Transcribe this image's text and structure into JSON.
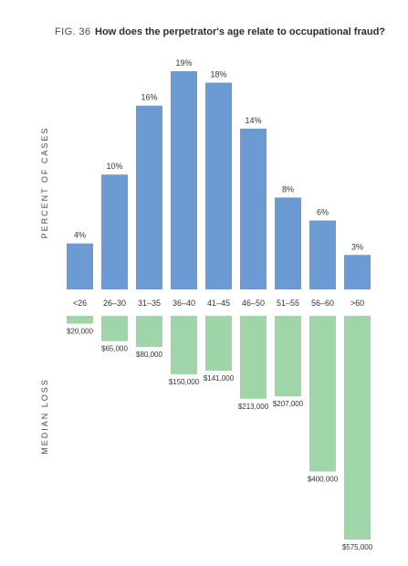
{
  "figure": {
    "label": "FIG. 36",
    "title": "How does the perpetrator's age relate to occupational fraud?"
  },
  "chart_data": [
    {
      "type": "bar",
      "ylabel": "PERCENT OF CASES",
      "categories": [
        "<26",
        "26–30",
        "31–35",
        "36–40",
        "41–45",
        "46–50",
        "51–55",
        "56–60",
        ">60"
      ],
      "values": [
        4,
        10,
        16,
        19,
        18,
        14,
        8,
        6,
        3
      ],
      "value_labels": [
        "4%",
        "10%",
        "16%",
        "19%",
        "18%",
        "14%",
        "8%",
        "6%",
        "3%"
      ],
      "ylim": [
        0,
        19
      ],
      "color": "#6b9bd2",
      "grid": false
    },
    {
      "type": "bar",
      "orientation": "downward",
      "ylabel": "MEDIAN LOSS",
      "categories": [
        "<26",
        "26–30",
        "31–35",
        "36–40",
        "41–45",
        "46–50",
        "51–55",
        "56–60",
        ">60"
      ],
      "values": [
        20000,
        65000,
        80000,
        150000,
        141000,
        213000,
        207000,
        400000,
        575000
      ],
      "value_labels": [
        "$20,000",
        "$65,000",
        "$80,000",
        "$150,000",
        "$141,000",
        "$213,000",
        "$207,000",
        "$400,000",
        "$575,000"
      ],
      "ylim": [
        0,
        575000
      ],
      "color": "#9fd5a9",
      "grid": false
    }
  ]
}
